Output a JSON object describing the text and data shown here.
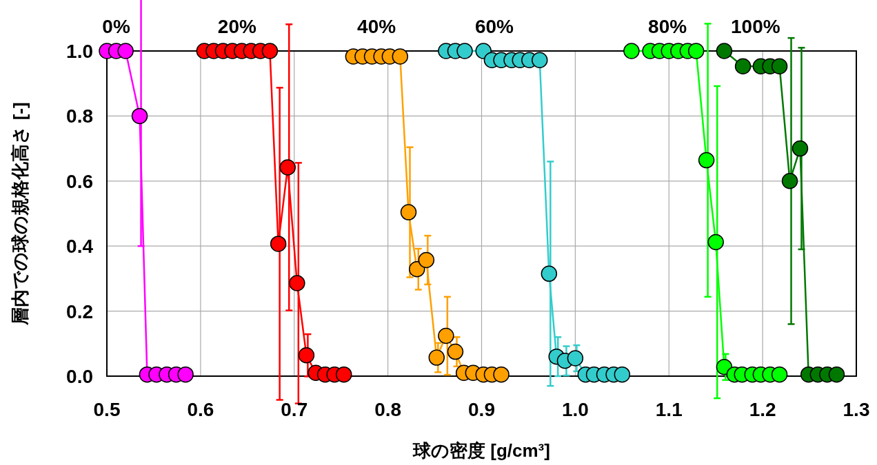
{
  "chart_data": {
    "type": "line",
    "xlabel": "球の密度 [g/cm³]",
    "ylabel": "層内での球の規格化高さ [-]",
    "xlim": [
      0.5,
      1.3
    ],
    "ylim": [
      0,
      1.0
    ],
    "xticks": [
      {
        "value": 0.5,
        "label": "0.5"
      },
      {
        "value": 0.6,
        "label": "0.6"
      },
      {
        "value": 0.7,
        "label": "0.7"
      },
      {
        "value": 0.8,
        "label": "0.8"
      },
      {
        "value": 0.9,
        "label": "0.9"
      },
      {
        "value": 1.0,
        "label": "1.0"
      },
      {
        "value": 1.1,
        "label": "1.1"
      },
      {
        "value": 1.2,
        "label": "1.2"
      },
      {
        "value": 1.3,
        "label": "1.3"
      }
    ],
    "yticks": [
      {
        "value": 0,
        "label": "0.0"
      },
      {
        "value": 0.2,
        "label": "0.2"
      },
      {
        "value": 0.4,
        "label": "0.4"
      },
      {
        "value": 0.6,
        "label": "0.6"
      },
      {
        "value": 0.8,
        "label": "0.8"
      },
      {
        "value": 1.0,
        "label": "1.0"
      }
    ],
    "grid": true,
    "marker": "circle",
    "line_style": "solid",
    "series": [
      {
        "name": "0%",
        "color": "#ff00ff",
        "x": [
          0.5,
          0.51,
          0.52,
          0.535,
          0.543,
          0.553,
          0.564,
          0.574,
          0.584
        ],
        "values": [
          1.0,
          1.0,
          1.0,
          0.8,
          0.005,
          0.005,
          0.005,
          0.005,
          0.005
        ],
        "errors": [
          null,
          null,
          null,
          0.4,
          null,
          null,
          null,
          null,
          null
        ]
      },
      {
        "name": "20%",
        "color": "#ff0000",
        "x": [
          0.604,
          0.614,
          0.624,
          0.634,
          0.644,
          0.654,
          0.664,
          0.674,
          0.683,
          0.693,
          0.703,
          0.713,
          0.723,
          0.733,
          0.743,
          0.753
        ],
        "values": [
          1.0,
          1.0,
          1.0,
          1.0,
          1.0,
          1.0,
          1.0,
          1.0,
          0.407,
          0.642,
          0.286,
          0.064,
          0.01,
          0.005,
          0.005,
          0.005
        ],
        "errors": [
          null,
          null,
          null,
          null,
          null,
          null,
          null,
          null,
          0.48,
          0.44,
          0.37,
          0.065,
          null,
          null,
          null,
          null
        ]
      },
      {
        "name": "40%",
        "color": "#ffa000",
        "x": [
          0.763,
          0.773,
          0.783,
          0.793,
          0.802,
          0.813,
          0.822,
          0.831,
          0.841,
          0.852,
          0.862,
          0.872,
          0.881,
          0.891,
          0.902,
          0.911,
          0.921
        ],
        "values": [
          0.983,
          0.983,
          0.983,
          0.983,
          0.983,
          0.983,
          0.504,
          0.329,
          0.357,
          0.057,
          0.124,
          0.075,
          0.01,
          0.01,
          0.005,
          0.005,
          0.005
        ],
        "errors": [
          null,
          null,
          null,
          null,
          null,
          null,
          0.2,
          0.063,
          0.075,
          0.045,
          0.12,
          0.045,
          null,
          null,
          null,
          null,
          null
        ]
      },
      {
        "name": "60%",
        "color": "#33cccc",
        "x": [
          0.862,
          0.872,
          0.882,
          0.902,
          0.911,
          0.921,
          0.932,
          0.941,
          0.951,
          0.962,
          0.972,
          0.98,
          0.989,
          1.0,
          1.011,
          1.02,
          1.031,
          1.041,
          1.05
        ],
        "values": [
          1.0,
          1.0,
          1.0,
          1.0,
          0.972,
          0.972,
          0.972,
          0.972,
          0.972,
          0.972,
          0.315,
          0.06,
          0.047,
          0.055,
          0.005,
          0.005,
          0.005,
          0.005,
          0.005
        ],
        "errors": [
          null,
          null,
          null,
          null,
          null,
          null,
          null,
          null,
          null,
          null,
          0.345,
          0.06,
          0.045,
          0.04,
          null,
          null,
          null,
          null,
          null
        ]
      },
      {
        "name": "80%",
        "color": "#00ff00",
        "x": [
          1.06,
          1.08,
          1.09,
          1.1,
          1.11,
          1.12,
          1.129,
          1.14,
          1.15,
          1.159,
          1.17,
          1.178,
          1.189,
          1.198,
          1.208,
          1.218
        ],
        "values": [
          1.0,
          1.0,
          1.0,
          1.0,
          1.0,
          1.0,
          1.0,
          0.664,
          0.412,
          0.028,
          0.005,
          0.005,
          0.005,
          0.005,
          0.005,
          0.005
        ],
        "errors": [
          null,
          null,
          null,
          null,
          null,
          null,
          null,
          0.42,
          0.48,
          0.04,
          null,
          null,
          null,
          null,
          null,
          null
        ]
      },
      {
        "name": "100%",
        "color": "#007800",
        "x": [
          1.159,
          1.179,
          1.198,
          1.208,
          1.218,
          1.229,
          1.24,
          1.249,
          1.259,
          1.269,
          1.279
        ],
        "values": [
          1.0,
          0.953,
          0.953,
          0.953,
          0.953,
          0.6,
          0.7,
          0.005,
          0.005,
          0.005,
          0.005
        ],
        "errors": [
          null,
          null,
          null,
          null,
          null,
          0.44,
          0.31,
          null,
          null,
          null,
          null
        ]
      }
    ]
  }
}
